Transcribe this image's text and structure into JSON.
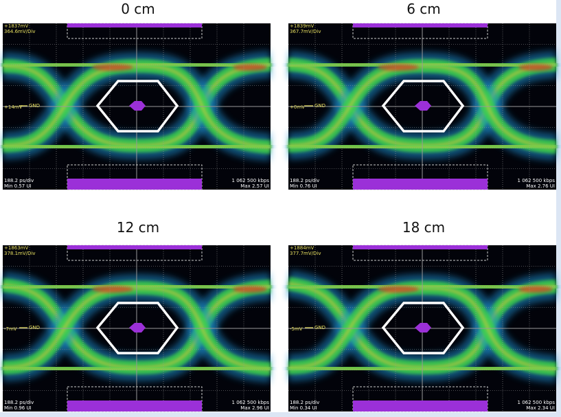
{
  "panels": [
    {
      "title": "0 cm",
      "volts": "+1837mV",
      "scale": "364.6mV/Div",
      "offset": "+14mV",
      "gnd": "GND",
      "timebase": "188.2 ps/div",
      "min": "Min 0.57 UI",
      "rate": "1 062 500 kbps",
      "max": "Max 2.57 UI"
    },
    {
      "title": "6 cm",
      "volts": "+1839mV",
      "scale": "367.7mV/Div",
      "offset": "+0mV",
      "gnd": "GND",
      "timebase": "188.2 ps/div",
      "min": "Min 0.76 UI",
      "rate": "1 062 500 kbps",
      "max": "Max 2.76 UI"
    },
    {
      "title": "12 cm",
      "volts": "+1863mV",
      "scale": "378.1mV/Div",
      "offset": "-7mV",
      "gnd": "GND",
      "timebase": "188.2 ps/div",
      "min": "Min 0.96 UI",
      "rate": "1 062 500 kbps",
      "max": "Max 2.96 UI"
    },
    {
      "title": "18 cm",
      "volts": "+1884mV",
      "scale": "377.7mV/Div",
      "offset": "-5mV",
      "gnd": "GND",
      "timebase": "188.2 ps/div",
      "min": "Min 0.34 UI",
      "rate": "1 062 500 kbps",
      "max": "Max 2.34 UI"
    }
  ]
}
